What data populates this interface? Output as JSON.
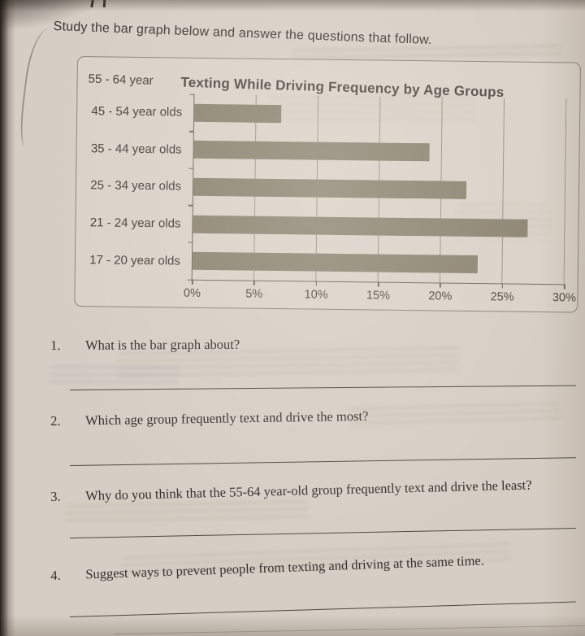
{
  "page": {
    "instruction": "Study the bar graph below and answer the questions that follow."
  },
  "chart": {
    "title": "Texting While Driving Frequency by Age Groups",
    "top_left_label": "55 - 64 year",
    "bar_color": "#8b8270",
    "x_axis": {
      "max": 30,
      "ticks": [
        "0%",
        "5%",
        "10%",
        "15%",
        "20%",
        "25%",
        "30%"
      ]
    },
    "bars": [
      {
        "label": "45 - 54 year olds",
        "value": 7
      },
      {
        "label": "35 - 44 year olds",
        "value": 19
      },
      {
        "label": "25 - 34 year olds",
        "value": 22
      },
      {
        "label": "21 - 24 year olds",
        "value": 27
      },
      {
        "label": "17 - 20 year olds",
        "value": 23
      }
    ]
  },
  "chart_data": {
    "type": "bar",
    "orientation": "horizontal",
    "title": "Texting While Driving Frequency by Age Groups",
    "categories": [
      "55 - 64 year",
      "45 - 54 year olds",
      "35 - 44 year olds",
      "25 - 34 year olds",
      "21 - 24 year olds",
      "17 - 20 year olds"
    ],
    "values": [
      0,
      7,
      19,
      22,
      27,
      23
    ],
    "xlabel": "",
    "ylabel": "",
    "xlim": [
      0,
      30
    ],
    "x_tick_labels": [
      "0%",
      "5%",
      "10%",
      "15%",
      "20%",
      "25%",
      "30%"
    ],
    "grid": true,
    "legend": false,
    "note": "The 55 - 64 year label is shown at the top of the chart with no visible bar."
  },
  "questions": [
    {
      "number": "1.",
      "text": "What is the bar graph about?"
    },
    {
      "number": "2.",
      "text": "Which age group frequently text and drive the most?"
    },
    {
      "number": "3.",
      "text": "Why do you think that the 55-64 year-old group frequently text and drive the least?"
    },
    {
      "number": "4.",
      "text": "Suggest ways to prevent people from texting and driving at the same time."
    }
  ]
}
